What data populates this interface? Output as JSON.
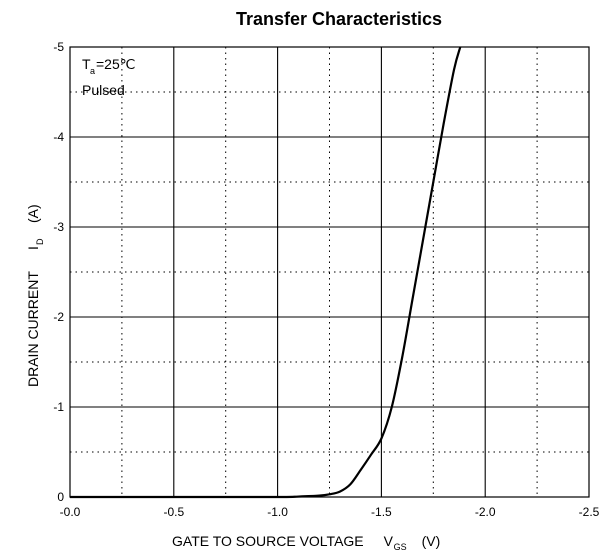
{
  "chart_data": {
    "type": "line",
    "title": "Transfer Characteristics",
    "xlabel": {
      "text": "GATE TO SOURCE VOLTAGE",
      "symbol": "V",
      "subscript": "GS",
      "unit": "(V)"
    },
    "ylabel": {
      "text": "DRAIN CURRENT",
      "symbol": "I",
      "subscript": "D",
      "unit": "(A)"
    },
    "xlim": [
      0.0,
      -2.5
    ],
    "ylim": [
      0,
      -5
    ],
    "x_ticks": [
      "-0.0",
      "-0.5",
      "-1.0",
      "-1.5",
      "-2.0",
      "-2.5"
    ],
    "y_ticks": [
      "0",
      "-1",
      "-2",
      "-3",
      "-4",
      "-5"
    ],
    "x_tick_values": [
      0.0,
      -0.5,
      -1.0,
      -1.5,
      -2.0,
      -2.5
    ],
    "y_tick_values": [
      0,
      -1,
      -2,
      -3,
      -4,
      -5
    ],
    "grid": "major solid, minor dotted",
    "annotations": {
      "condition_symbol": "T",
      "condition_subscript": "a",
      "condition_value": "=25℃",
      "mode": "Pulsed"
    },
    "series": [
      {
        "x": [
          0.0,
          -0.5,
          -1.0,
          -1.1,
          -1.2,
          -1.25,
          -1.3,
          -1.35,
          -1.4,
          -1.45,
          -1.5,
          -1.55,
          -1.6,
          -1.65,
          -1.7,
          -1.75,
          -1.8,
          -1.85,
          -1.88
        ],
        "y": [
          0,
          0,
          0,
          -0.005,
          -0.015,
          -0.03,
          -0.06,
          -0.14,
          -0.3,
          -0.47,
          -0.65,
          -1.0,
          -1.55,
          -2.2,
          -2.85,
          -3.5,
          -4.15,
          -4.75,
          -5.0
        ]
      }
    ]
  }
}
